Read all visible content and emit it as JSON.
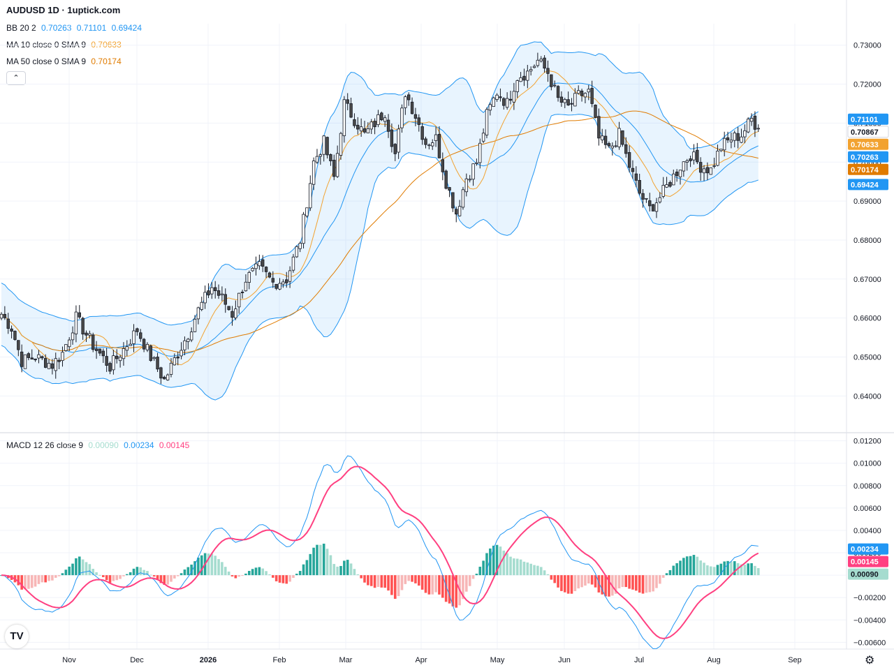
{
  "header": {
    "title": "AUDUSD 1D · 1uptick.com"
  },
  "indicators": {
    "bb": {
      "label": "BB 20 2",
      "values": [
        "0.70263",
        "0.71101",
        "0.69424"
      ],
      "color": "#2196f3"
    },
    "ma10": {
      "label": "MA 10 close 0 SMA 9",
      "value": "0.70633",
      "color": "#f2a230"
    },
    "ma50": {
      "label": "MA 50 close 0 SMA 9",
      "value": "0.70174",
      "color": "#e07b00"
    },
    "macd": {
      "label": "MACD 12 26 close 9",
      "values": [
        "0.00090",
        "0.00234",
        "0.00145"
      ],
      "colors": [
        "#a5dccf",
        "#2196f3",
        "#ff4081"
      ]
    }
  },
  "buttons": {
    "collapse_icon": "chevron-up-icon",
    "collapse_glyph": "⌃"
  },
  "logo": {
    "text": "TV"
  },
  "chart_data": [
    {
      "type": "candlestick",
      "title": "",
      "ylim": [
        0.632,
        0.7355
      ],
      "y_ticks": [
        "0.73000",
        "0.72000",
        "0.71000",
        "0.70000",
        "0.69000",
        "0.68000",
        "0.67000",
        "0.66000",
        "0.65000",
        "0.64000"
      ],
      "x_ticks": [
        "Nov",
        "Dec",
        "2026",
        "Feb",
        "Mar",
        "Apr",
        "May",
        "Jun",
        "Jul",
        "Aug",
        "Sep"
      ],
      "price_labels": [
        {
          "text": "0.71101",
          "value": 0.71101,
          "color": "#2196f3"
        },
        {
          "text": "0.70867",
          "value": 0.70867,
          "color": "#ffffff"
        },
        {
          "text": "0.70633",
          "value": 0.70633,
          "color": "#f2a230"
        },
        {
          "text": "0.70263",
          "value": 0.70263,
          "color": "#2196f3"
        },
        {
          "text": "0.70174",
          "value": 0.70174,
          "color": "#e07b00"
        },
        {
          "text": "0.69424",
          "value": 0.69424,
          "color": "#2196f3"
        }
      ],
      "close_anchors": [
        [
          0,
          0.661
        ],
        [
          3,
          0.6575
        ],
        [
          6,
          0.649
        ],
        [
          10,
          0.65
        ],
        [
          15,
          0.648
        ],
        [
          18,
          0.651
        ],
        [
          22,
          0.66
        ],
        [
          27,
          0.653
        ],
        [
          32,
          0.6475
        ],
        [
          36,
          0.652
        ],
        [
          40,
          0.657
        ],
        [
          44,
          0.65
        ],
        [
          48,
          0.644
        ],
        [
          52,
          0.651
        ],
        [
          55,
          0.656
        ],
        [
          58,
          0.662
        ],
        [
          62,
          0.668
        ],
        [
          65,
          0.665
        ],
        [
          68,
          0.661
        ],
        [
          72,
          0.67
        ],
        [
          76,
          0.673
        ],
        [
          80,
          0.669
        ],
        [
          84,
          0.67
        ],
        [
          88,
          0.68
        ],
        [
          92,
          0.7
        ],
        [
          95,
          0.705
        ],
        [
          98,
          0.696
        ],
        [
          101,
          0.715
        ],
        [
          104,
          0.711
        ],
        [
          107,
          0.707
        ],
        [
          110,
          0.71
        ],
        [
          113,
          0.713
        ],
        [
          116,
          0.702
        ],
        [
          119,
          0.718
        ],
        [
          122,
          0.712
        ],
        [
          125,
          0.705
        ],
        [
          128,
          0.706
        ],
        [
          131,
          0.695
        ],
        [
          134,
          0.687
        ],
        [
          137,
          0.696
        ],
        [
          140,
          0.7
        ],
        [
          143,
          0.712
        ],
        [
          146,
          0.718
        ],
        [
          149,
          0.715
        ],
        [
          152,
          0.722
        ],
        [
          155,
          0.723
        ],
        [
          158,
          0.726
        ],
        [
          161,
          0.723
        ],
        [
          164,
          0.716
        ],
        [
          167,
          0.714
        ],
        [
          170,
          0.717
        ],
        [
          173,
          0.718
        ],
        [
          176,
          0.706
        ],
        [
          179,
          0.703
        ],
        [
          182,
          0.707
        ],
        [
          185,
          0.699
        ],
        [
          188,
          0.692
        ],
        [
          191,
          0.688
        ],
        [
          194,
          0.691
        ],
        [
          197,
          0.695
        ],
        [
          200,
          0.699
        ],
        [
          203,
          0.702
        ],
        [
          206,
          0.699
        ],
        [
          209,
          0.698
        ],
        [
          212,
          0.704
        ],
        [
          215,
          0.706
        ],
        [
          218,
          0.707
        ],
        [
          221,
          0.711
        ],
        [
          223,
          0.7087
        ]
      ]
    },
    {
      "type": "macd",
      "title": "",
      "ylim": [
        -0.0066,
        0.0126
      ],
      "y_ticks": [
        "0.01200",
        "0.01000",
        "0.00800",
        "0.00600",
        "0.00400",
        "0.00200",
        "0.00000",
        "−0.00200",
        "−0.00400",
        "−0.00600"
      ],
      "price_labels": [
        {
          "text": "0.00234",
          "value": 0.00234,
          "color": "#2196f3"
        },
        {
          "text": "0.00145",
          "value": 0.00145,
          "color": "#ff4081"
        },
        {
          "text": "0.00090",
          "value": 0.0009,
          "color": "#a5dccf"
        }
      ]
    }
  ]
}
